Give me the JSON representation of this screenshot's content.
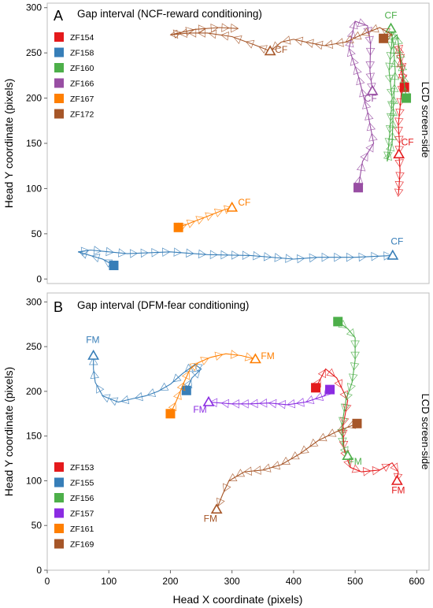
{
  "x_axis_label": "Head X coordinate (pixels)",
  "colors": {
    "ZF154": "#e41a1c",
    "ZF158": "#377eb8",
    "ZF160": "#4daf4a",
    "ZF166": "#984ea3",
    "ZF167": "#ff7f00",
    "ZF172": "#a65628",
    "ZF153": "#e41a1c",
    "ZF155": "#377eb8",
    "ZF156": "#4daf4a",
    "ZF157": "#8a2be2",
    "ZF161": "#ff7f00",
    "ZF169": "#a65628"
  },
  "chart_data": [
    {
      "type": "line",
      "panel_letter": "A",
      "title": "Gap interval (NCF-reward conditioning)",
      "xlabel": "",
      "ylabel": "Head Y coordinate (pixels)",
      "side_label": "LCD screen-side",
      "xlim": [
        0,
        620
      ],
      "ylim": [
        -5,
        305
      ],
      "yticks": [
        0,
        50,
        100,
        150,
        200,
        250,
        300
      ],
      "xticks": [],
      "legend": [
        "ZF154",
        "ZF158",
        "ZF160",
        "ZF166",
        "ZF167",
        "ZF172"
      ],
      "series": [
        {
          "name": "ZF154",
          "start": [
            580,
            212
          ],
          "end_label": "CF",
          "end": [
            571,
            138
          ],
          "label_pos": [
            585,
            148
          ],
          "points": [
            [
              580,
              212
            ],
            [
              575,
              230
            ],
            [
              570,
              260
            ],
            [
              578,
              230
            ],
            [
              573,
              190
            ],
            [
              570,
              170
            ],
            [
              572,
              150
            ],
            [
              571,
              138
            ],
            [
              573,
              120
            ],
            [
              571,
              100
            ],
            [
              570,
              93
            ]
          ]
        },
        {
          "name": "ZF158",
          "start": [
            108,
            15
          ],
          "end_label": "CF",
          "end": [
            561,
            26
          ],
          "label_pos": [
            568,
            38
          ],
          "points": [
            [
              108,
              15
            ],
            [
              90,
              22
            ],
            [
              50,
              30
            ],
            [
              70,
              32
            ],
            [
              130,
              28
            ],
            [
              200,
              30
            ],
            [
              260,
              27
            ],
            [
              330,
              26
            ],
            [
              400,
              22
            ],
            [
              440,
              24
            ],
            [
              500,
              24
            ],
            [
              561,
              26
            ]
          ]
        },
        {
          "name": "ZF160",
          "start": [
            583,
            200
          ],
          "end_label": "CF",
          "end": [
            558,
            277
          ],
          "label_pos": [
            558,
            288
          ],
          "points": [
            [
              583,
              200
            ],
            [
              575,
              240
            ],
            [
              568,
              270
            ],
            [
              560,
              265
            ],
            [
              555,
              230
            ],
            [
              560,
              200
            ],
            [
              556,
              160
            ],
            [
              552,
              130
            ],
            [
              560,
              150
            ],
            [
              562,
              190
            ],
            [
              565,
              230
            ],
            [
              562,
              260
            ],
            [
              558,
              277
            ]
          ]
        },
        {
          "name": "ZF166",
          "start": [
            505,
            101
          ],
          "end_label": "CF",
          "end": [
            528,
            208
          ],
          "label_pos": [
            525,
            196
          ],
          "points": [
            [
              505,
              101
            ],
            [
              512,
              130
            ],
            [
              530,
              150
            ],
            [
              520,
              185
            ],
            [
              505,
              225
            ],
            [
              490,
              255
            ],
            [
              500,
              285
            ],
            [
              520,
              280
            ],
            [
              525,
              260
            ],
            [
              524,
              230
            ],
            [
              528,
              208
            ]
          ]
        },
        {
          "name": "ZF167",
          "start": [
            213,
            57
          ],
          "end_label": "CF",
          "end": [
            300,
            79
          ],
          "label_pos": [
            320,
            81
          ],
          "points": [
            [
              213,
              57
            ],
            [
              225,
              60
            ],
            [
              240,
              64
            ],
            [
              255,
              68
            ],
            [
              270,
              72
            ],
            [
              285,
              76
            ],
            [
              300,
              79
            ]
          ]
        },
        {
          "name": "ZF172",
          "start": [
            546,
            266
          ],
          "end_label": "CF",
          "end": [
            362,
            252
          ],
          "label_pos": [
            380,
            250
          ],
          "points": [
            [
              546,
              266
            ],
            [
              560,
              270
            ],
            [
              540,
              278
            ],
            [
              510,
              270
            ],
            [
              485,
              262
            ],
            [
              450,
              258
            ],
            [
              420,
              262
            ],
            [
              400,
              265
            ],
            [
              380,
              262
            ],
            [
              362,
              252
            ],
            [
              340,
              258
            ],
            [
              300,
              268
            ],
            [
              260,
              272
            ],
            [
              230,
              272
            ],
            [
              200,
              270
            ],
            [
              240,
              276
            ],
            [
              280,
              278
            ],
            [
              310,
              277
            ]
          ]
        }
      ]
    },
    {
      "type": "line",
      "panel_letter": "B",
      "title": "Gap interval (DFM-fear conditioning)",
      "xlabel": "Head X coordinate (pixels)",
      "ylabel": "Head Y coordinate (pixels)",
      "side_label": "LCD screen-side",
      "xlim": [
        0,
        620
      ],
      "ylim": [
        0,
        310
      ],
      "yticks": [
        0,
        50,
        100,
        150,
        200,
        250,
        300
      ],
      "xticks": [
        0,
        100,
        200,
        300,
        400,
        500,
        600
      ],
      "legend": [
        "ZF153",
        "ZF155",
        "ZF156",
        "ZF157",
        "ZF161",
        "ZF169"
      ],
      "series": [
        {
          "name": "ZF153",
          "start": [
            436,
            204
          ],
          "end_label": "FM",
          "end": [
            568,
            100
          ],
          "label_pos": [
            570,
            86
          ],
          "points": [
            [
              436,
              204
            ],
            [
              452,
              225
            ],
            [
              470,
              215
            ],
            [
              488,
              190
            ],
            [
              480,
              160
            ],
            [
              482,
              135
            ],
            [
              492,
              115
            ],
            [
              510,
              110
            ],
            [
              540,
              112
            ],
            [
              560,
              120
            ],
            [
              570,
              110
            ],
            [
              568,
              100
            ]
          ]
        },
        {
          "name": "ZF155",
          "start": [
            226,
            201
          ],
          "end_label": "FM",
          "end": [
            75,
            240
          ],
          "label_pos": [
            74,
            254
          ],
          "points": [
            [
              226,
              201
            ],
            [
              235,
              215
            ],
            [
              250,
              225
            ],
            [
              240,
              230
            ],
            [
              220,
              220
            ],
            [
              200,
              208
            ],
            [
              180,
              200
            ],
            [
              160,
              195
            ],
            [
              140,
              192
            ],
            [
              115,
              188
            ],
            [
              90,
              195
            ],
            [
              78,
              210
            ],
            [
              75,
              225
            ],
            [
              75,
              240
            ]
          ]
        },
        {
          "name": "ZF156",
          "start": [
            472,
            278
          ],
          "end_label": "FM",
          "end": [
            488,
            128
          ],
          "label_pos": [
            500,
            118
          ],
          "points": [
            [
              472,
              278
            ],
            [
              488,
              270
            ],
            [
              500,
              260
            ],
            [
              500,
              235
            ],
            [
              495,
              210
            ],
            [
              485,
              190
            ],
            [
              478,
              160
            ],
            [
              480,
              140
            ],
            [
              488,
              128
            ]
          ]
        },
        {
          "name": "ZF157",
          "start": [
            459,
            202
          ],
          "end_label": "FM",
          "end": [
            262,
            188
          ],
          "label_pos": [
            248,
            176
          ],
          "points": [
            [
              459,
              202
            ],
            [
              450,
              195
            ],
            [
              420,
              188
            ],
            [
              390,
              185
            ],
            [
              360,
              187
            ],
            [
              330,
              186
            ],
            [
              300,
              186
            ],
            [
              262,
              188
            ]
          ]
        },
        {
          "name": "ZF161",
          "start": [
            200,
            175
          ],
          "end_label": "FM",
          "end": [
            338,
            236
          ],
          "label_pos": [
            358,
            236
          ],
          "points": [
            [
              200,
              175
            ],
            [
              210,
              190
            ],
            [
              222,
              210
            ],
            [
              232,
              225
            ],
            [
              245,
              232
            ],
            [
              265,
              238
            ],
            [
              290,
              242
            ],
            [
              315,
              240
            ],
            [
              338,
              236
            ]
          ]
        },
        {
          "name": "ZF169",
          "start": [
            503,
            164
          ],
          "end_label": "FM",
          "end": [
            275,
            68
          ],
          "label_pos": [
            265,
            54
          ],
          "points": [
            [
              503,
              164
            ],
            [
              470,
              155
            ],
            [
              440,
              145
            ],
            [
              410,
              130
            ],
            [
              380,
              118
            ],
            [
              350,
              112
            ],
            [
              320,
              110
            ],
            [
              295,
              100
            ],
            [
              285,
              85
            ],
            [
              275,
              68
            ]
          ]
        }
      ]
    }
  ]
}
